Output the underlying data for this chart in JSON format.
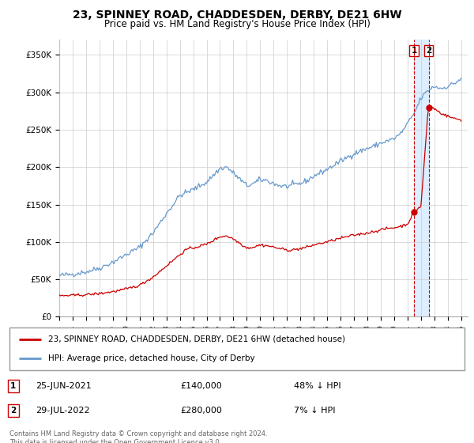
{
  "title": "23, SPINNEY ROAD, CHADDESDEN, DERBY, DE21 6HW",
  "subtitle": "Price paid vs. HM Land Registry's House Price Index (HPI)",
  "ylabel_ticks": [
    "£0",
    "£50K",
    "£100K",
    "£150K",
    "£200K",
    "£250K",
    "£300K",
    "£350K"
  ],
  "ylim": [
    0,
    370000
  ],
  "xlim_start": 1995.0,
  "xlim_end": 2025.5,
  "hpi_color": "#6699cc",
  "price_color": "#cc0000",
  "legend_label_price": "23, SPINNEY ROAD, CHADDESDEN, DERBY, DE21 6HW (detached house)",
  "legend_label_hpi": "HPI: Average price, detached house, City of Derby",
  "transaction1_date": "25-JUN-2021",
  "transaction1_price": "£140,000",
  "transaction1_hpi": "48% ↓ HPI",
  "transaction2_date": "29-JUL-2022",
  "transaction2_price": "£280,000",
  "transaction2_hpi": "7% ↓ HPI",
  "footer": "Contains HM Land Registry data © Crown copyright and database right 2024.\nThis data is licensed under the Open Government Licence v3.0.",
  "marker1_x": 2021.48,
  "marker1_y": 140000,
  "marker2_x": 2022.58,
  "marker2_y": 280000,
  "vline1_x": 2021.48,
  "vline2_x": 2022.58,
  "shade_color": "#ddeeff",
  "background_color": "#ffffff",
  "grid_color": "#cccccc"
}
